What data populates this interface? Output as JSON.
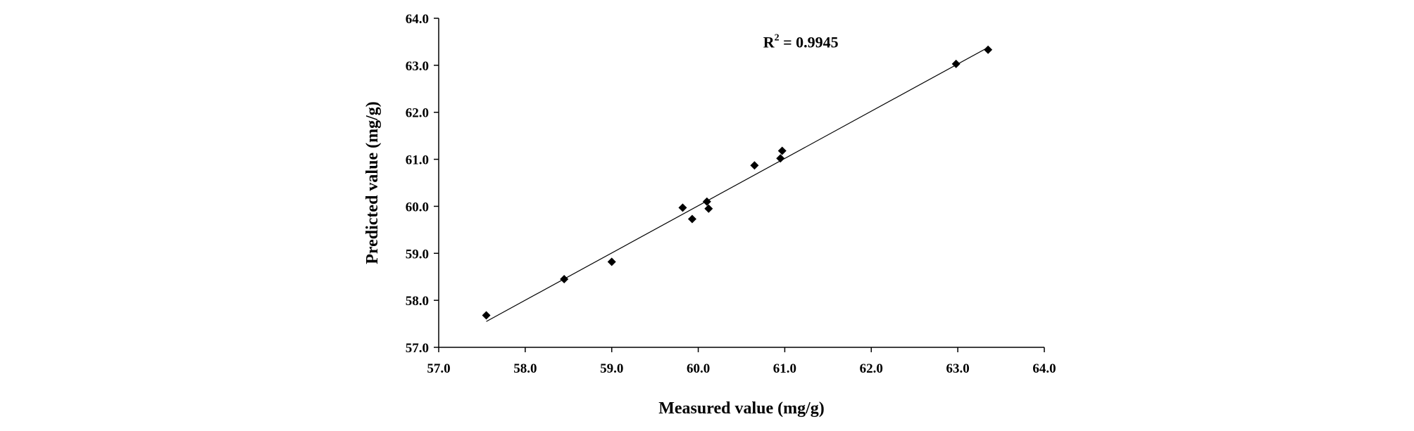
{
  "chart_data": {
    "type": "scatter",
    "title": "",
    "xlabel": "Measured value (mg/g)",
    "ylabel": "Predicted value (mg/g)",
    "xlim": [
      57.0,
      64.0
    ],
    "ylim": [
      57.0,
      64.0
    ],
    "x_ticks": [
      "57.0",
      "58.0",
      "59.0",
      "60.0",
      "61.0",
      "62.0",
      "63.0",
      "64.0"
    ],
    "y_ticks": [
      "57.0",
      "58.0",
      "59.0",
      "60.0",
      "61.0",
      "62.0",
      "63.0",
      "64.0"
    ],
    "grid": false,
    "series": [
      {
        "marker": "diamond",
        "color": "#000000",
        "x": [
          57.55,
          58.45,
          59.0,
          59.82,
          59.93,
          60.1,
          60.12,
          60.65,
          60.95,
          60.97,
          62.98,
          63.35
        ],
        "y": [
          57.68,
          58.45,
          58.82,
          59.97,
          59.73,
          60.1,
          59.95,
          60.87,
          61.02,
          61.18,
          63.03,
          63.33
        ]
      }
    ],
    "trendline": {
      "type": "linear",
      "from": [
        57.55,
        57.55
      ],
      "to": [
        63.35,
        63.38
      ]
    },
    "annotations": [
      {
        "label": "R",
        "superscript": "2",
        "text": " = 0.9945",
        "at": [
          60.75,
          63.5
        ]
      }
    ]
  }
}
